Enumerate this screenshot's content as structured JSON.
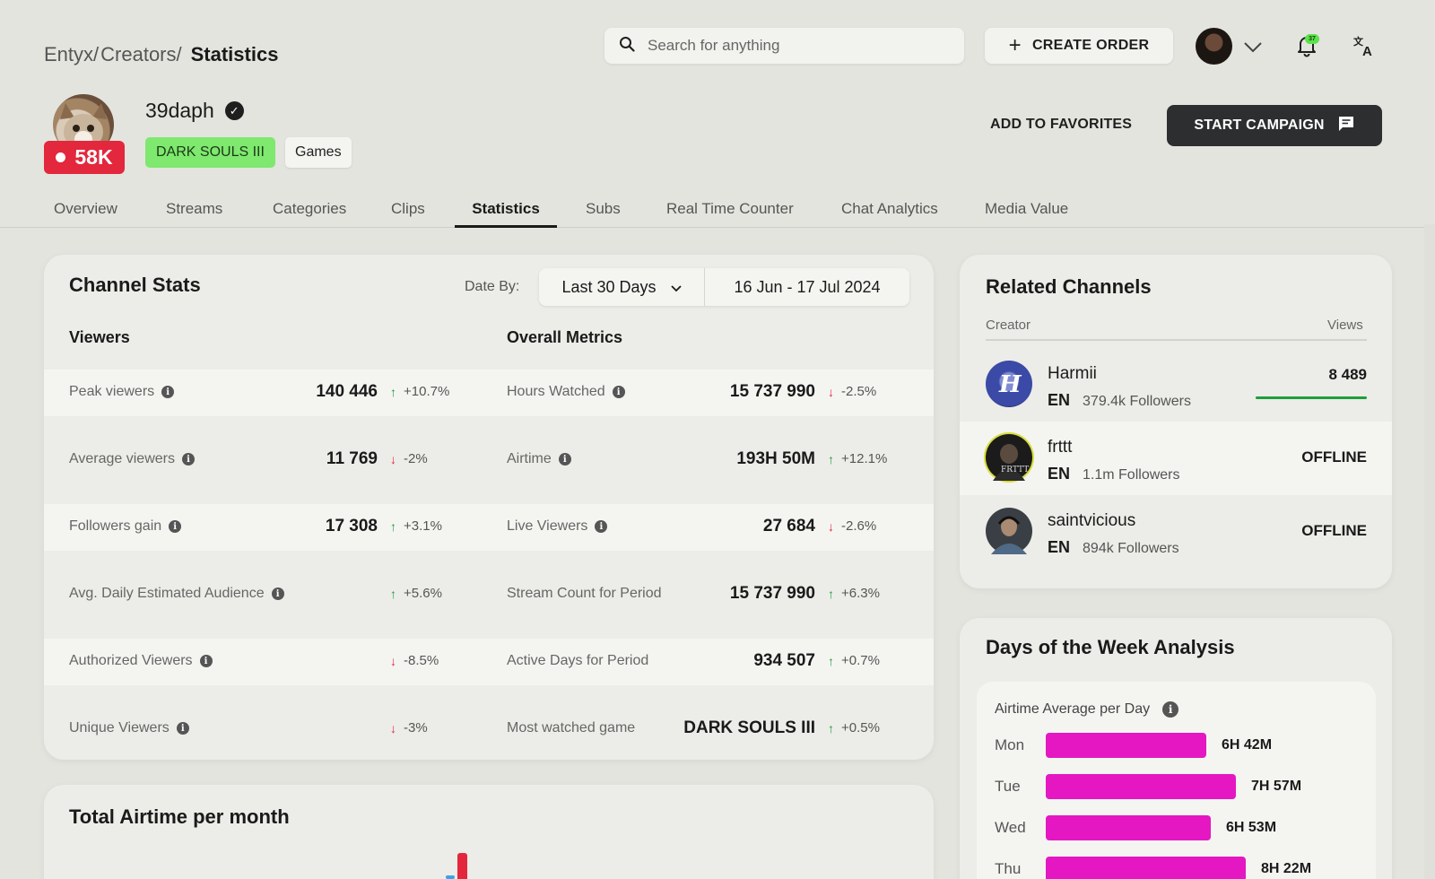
{
  "breadcrumb": {
    "items": [
      "Entyx/",
      "Creators/"
    ],
    "current": "Statistics"
  },
  "search": {
    "placeholder": "Search for anything"
  },
  "header": {
    "create_order": "CREATE ORDER",
    "notification_count": "37"
  },
  "profile": {
    "live_viewers": "58K",
    "username": "39daph",
    "game_tag": "DARK SOULS III",
    "category_tag": "Games",
    "add_to_favorites": "ADD TO FAVORITES",
    "start_campaign": "START CAMPAIGN"
  },
  "tabs": [
    "Overview",
    "Streams",
    "Categories",
    "Clips",
    "Statistics",
    "Subs",
    "Real Time Counter",
    "Chat Analytics",
    "Media Value"
  ],
  "active_tab": "Statistics",
  "channel_stats": {
    "title": "Channel Stats",
    "date_by_label": "Date By:",
    "period": "Last 30 Days",
    "date_range": "16 Jun - 17 Jul 2024",
    "viewers_title": "Viewers",
    "overall_title": "Overall Metrics",
    "viewers": [
      {
        "label": "Peak viewers",
        "value": "140 446",
        "dir": "up",
        "change": "+10.7%"
      },
      {
        "label": "Average viewers",
        "value": "11 769",
        "dir": "down",
        "change": "-2%"
      },
      {
        "label": "Followers gain",
        "value": "17 308",
        "dir": "up",
        "change": "+3.1%"
      },
      {
        "label": "Avg. Daily Estimated Audience",
        "value": "",
        "dir": "up",
        "change": "+5.6%"
      },
      {
        "label": "Authorized Viewers",
        "value": "",
        "dir": "down",
        "change": "-8.5%"
      },
      {
        "label": "Unique Viewers",
        "value": "",
        "dir": "down",
        "change": "-3%"
      }
    ],
    "overall": [
      {
        "label": "Hours Watched",
        "info": true,
        "value": "15 737 990",
        "dir": "down",
        "change": "-2.5%"
      },
      {
        "label": "Airtime",
        "info": true,
        "value": "193H 50M",
        "dir": "up",
        "change": "+12.1%"
      },
      {
        "label": "Live Viewers",
        "info": true,
        "value": "27 684",
        "dir": "down",
        "change": "-2.6%"
      },
      {
        "label": "Stream Count for Period",
        "info": false,
        "value": "15 737 990",
        "dir": "up",
        "change": "+6.3%"
      },
      {
        "label": "Active Days for Period",
        "info": false,
        "value": "934 507",
        "dir": "up",
        "change": "+0.7%"
      },
      {
        "label": "Most watched game",
        "info": false,
        "value": "DARK SOULS III",
        "dir": "up",
        "change": "+0.5%"
      }
    ]
  },
  "airtime_per_month": {
    "title": "Total Airtime per month"
  },
  "related_channels": {
    "title": "Related Channels",
    "col_creator": "Creator",
    "col_views": "Views",
    "items": [
      {
        "name": "Harmii",
        "lang": "EN",
        "followers": "379.4k Followers",
        "stat": "8 489",
        "progress": 1.0
      },
      {
        "name": "frttt",
        "lang": "EN",
        "followers": "1.1m Followers",
        "stat": "OFFLINE"
      },
      {
        "name": "saintvicious",
        "lang": "EN",
        "followers": "894k Followers",
        "stat": "OFFLINE"
      }
    ]
  },
  "days_of_week": {
    "title": "Days of the Week Analysis",
    "subtitle": "Airtime Average per Day",
    "days": [
      {
        "day": "Mon",
        "label": "6H 42M",
        "minutes": 402
      },
      {
        "day": "Tue",
        "label": "7H 57M",
        "minutes": 477
      },
      {
        "day": "Wed",
        "label": "6H 53M",
        "minutes": 413
      },
      {
        "day": "Thu",
        "label": "8H 22M",
        "minutes": 502
      }
    ]
  },
  "colors": {
    "live": "#e3273c",
    "game_tag": "#7fe86f",
    "bar": "#e417c2",
    "up": "#1e9e3a",
    "down": "#e3273c"
  }
}
